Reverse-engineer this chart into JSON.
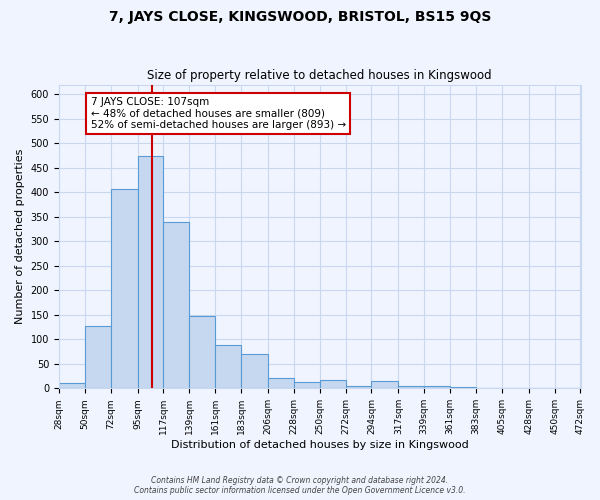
{
  "title": "7, JAYS CLOSE, KINGSWOOD, BRISTOL, BS15 9QS",
  "subtitle": "Size of property relative to detached houses in Kingswood",
  "xlabel": "Distribution of detached houses by size in Kingswood",
  "ylabel": "Number of detached properties",
  "bar_color": "#c5d8f0",
  "bar_edge_color": "#5b9bd5",
  "bg_color": "#f0f4ff",
  "grid_color": "#c8d8ee",
  "bins": [
    28,
    50,
    72,
    95,
    117,
    139,
    161,
    183,
    206,
    228,
    250,
    272,
    294,
    317,
    339,
    361,
    383,
    405,
    428,
    450,
    472
  ],
  "values": [
    10,
    128,
    407,
    475,
    340,
    147,
    88,
    70,
    22,
    12,
    18,
    5,
    14,
    5,
    5,
    2,
    1,
    1,
    1,
    1
  ],
  "property_size": 107,
  "vline_color": "#cc0000",
  "annotation_line1": "7 JAYS CLOSE: 107sqm",
  "annotation_line2": "← 48% of detached houses are smaller (809)",
  "annotation_line3": "52% of semi-detached houses are larger (893) →",
  "annotation_box_edge": "#cc0000",
  "annotation_box_face": "white",
  "ylim": [
    0,
    620
  ],
  "yticks": [
    0,
    50,
    100,
    150,
    200,
    250,
    300,
    350,
    400,
    450,
    500,
    550,
    600
  ],
  "footer1": "Contains HM Land Registry data © Crown copyright and database right 2024.",
  "footer2": "Contains public sector information licensed under the Open Government Licence v3.0."
}
